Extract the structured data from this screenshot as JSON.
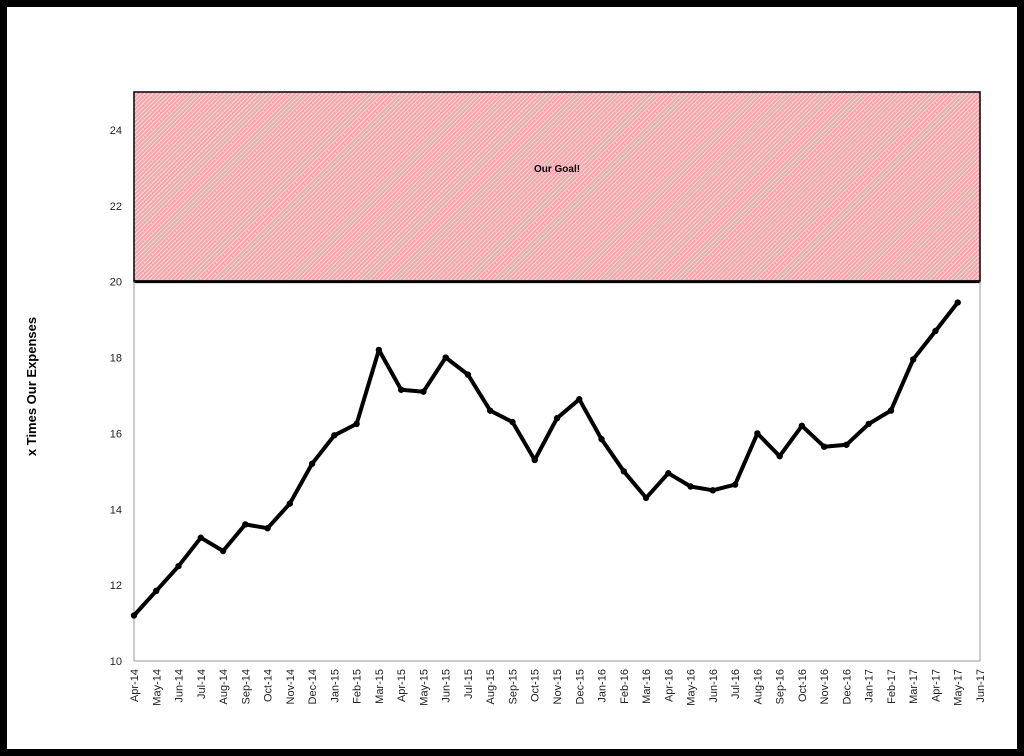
{
  "chart_data": {
    "type": "line",
    "ylabel": "x Times Our Expenses",
    "ylim": [
      10,
      25
    ],
    "yticks": [
      10,
      12,
      14,
      16,
      18,
      20,
      22,
      24
    ],
    "grid": false,
    "legend": "none",
    "line_color": "#000000",
    "categories": [
      "Apr-14",
      "May-14",
      "Jun-14",
      "Jul-14",
      "Aug-14",
      "Sep-14",
      "Oct-14",
      "Nov-14",
      "Dec-14",
      "Jan-15",
      "Feb-15",
      "Mar-15",
      "Apr-15",
      "May-15",
      "Jun-15",
      "Jul-15",
      "Aug-15",
      "Sep-15",
      "Oct-15",
      "Nov-15",
      "Dec-15",
      "Jan-16",
      "Feb-16",
      "Mar-16",
      "Apr-16",
      "May-16",
      "Jun-16",
      "Jul-16",
      "Aug-16",
      "Sep-16",
      "Oct-16",
      "Nov-16",
      "Dec-16",
      "Jan-17",
      "Feb-17",
      "Mar-17",
      "Apr-17",
      "May-17",
      "Jun-17"
    ],
    "values": [
      11.2,
      11.85,
      12.5,
      13.25,
      12.9,
      13.6,
      13.5,
      14.15,
      15.2,
      15.95,
      16.25,
      18.2,
      17.15,
      17.1,
      18.0,
      17.55,
      16.6,
      16.3,
      15.3,
      16.4,
      16.9,
      15.85,
      15.0,
      14.3,
      14.95,
      14.6,
      14.5,
      14.65,
      16.0,
      15.4,
      16.2,
      15.65,
      15.7,
      16.25,
      16.6,
      17.95,
      18.7,
      19.45,
      null
    ],
    "goal_band": {
      "from": 20,
      "to": 25,
      "label": "Our Goal!",
      "fill": "#f4a8ad",
      "hatch": "#ffffff"
    }
  }
}
